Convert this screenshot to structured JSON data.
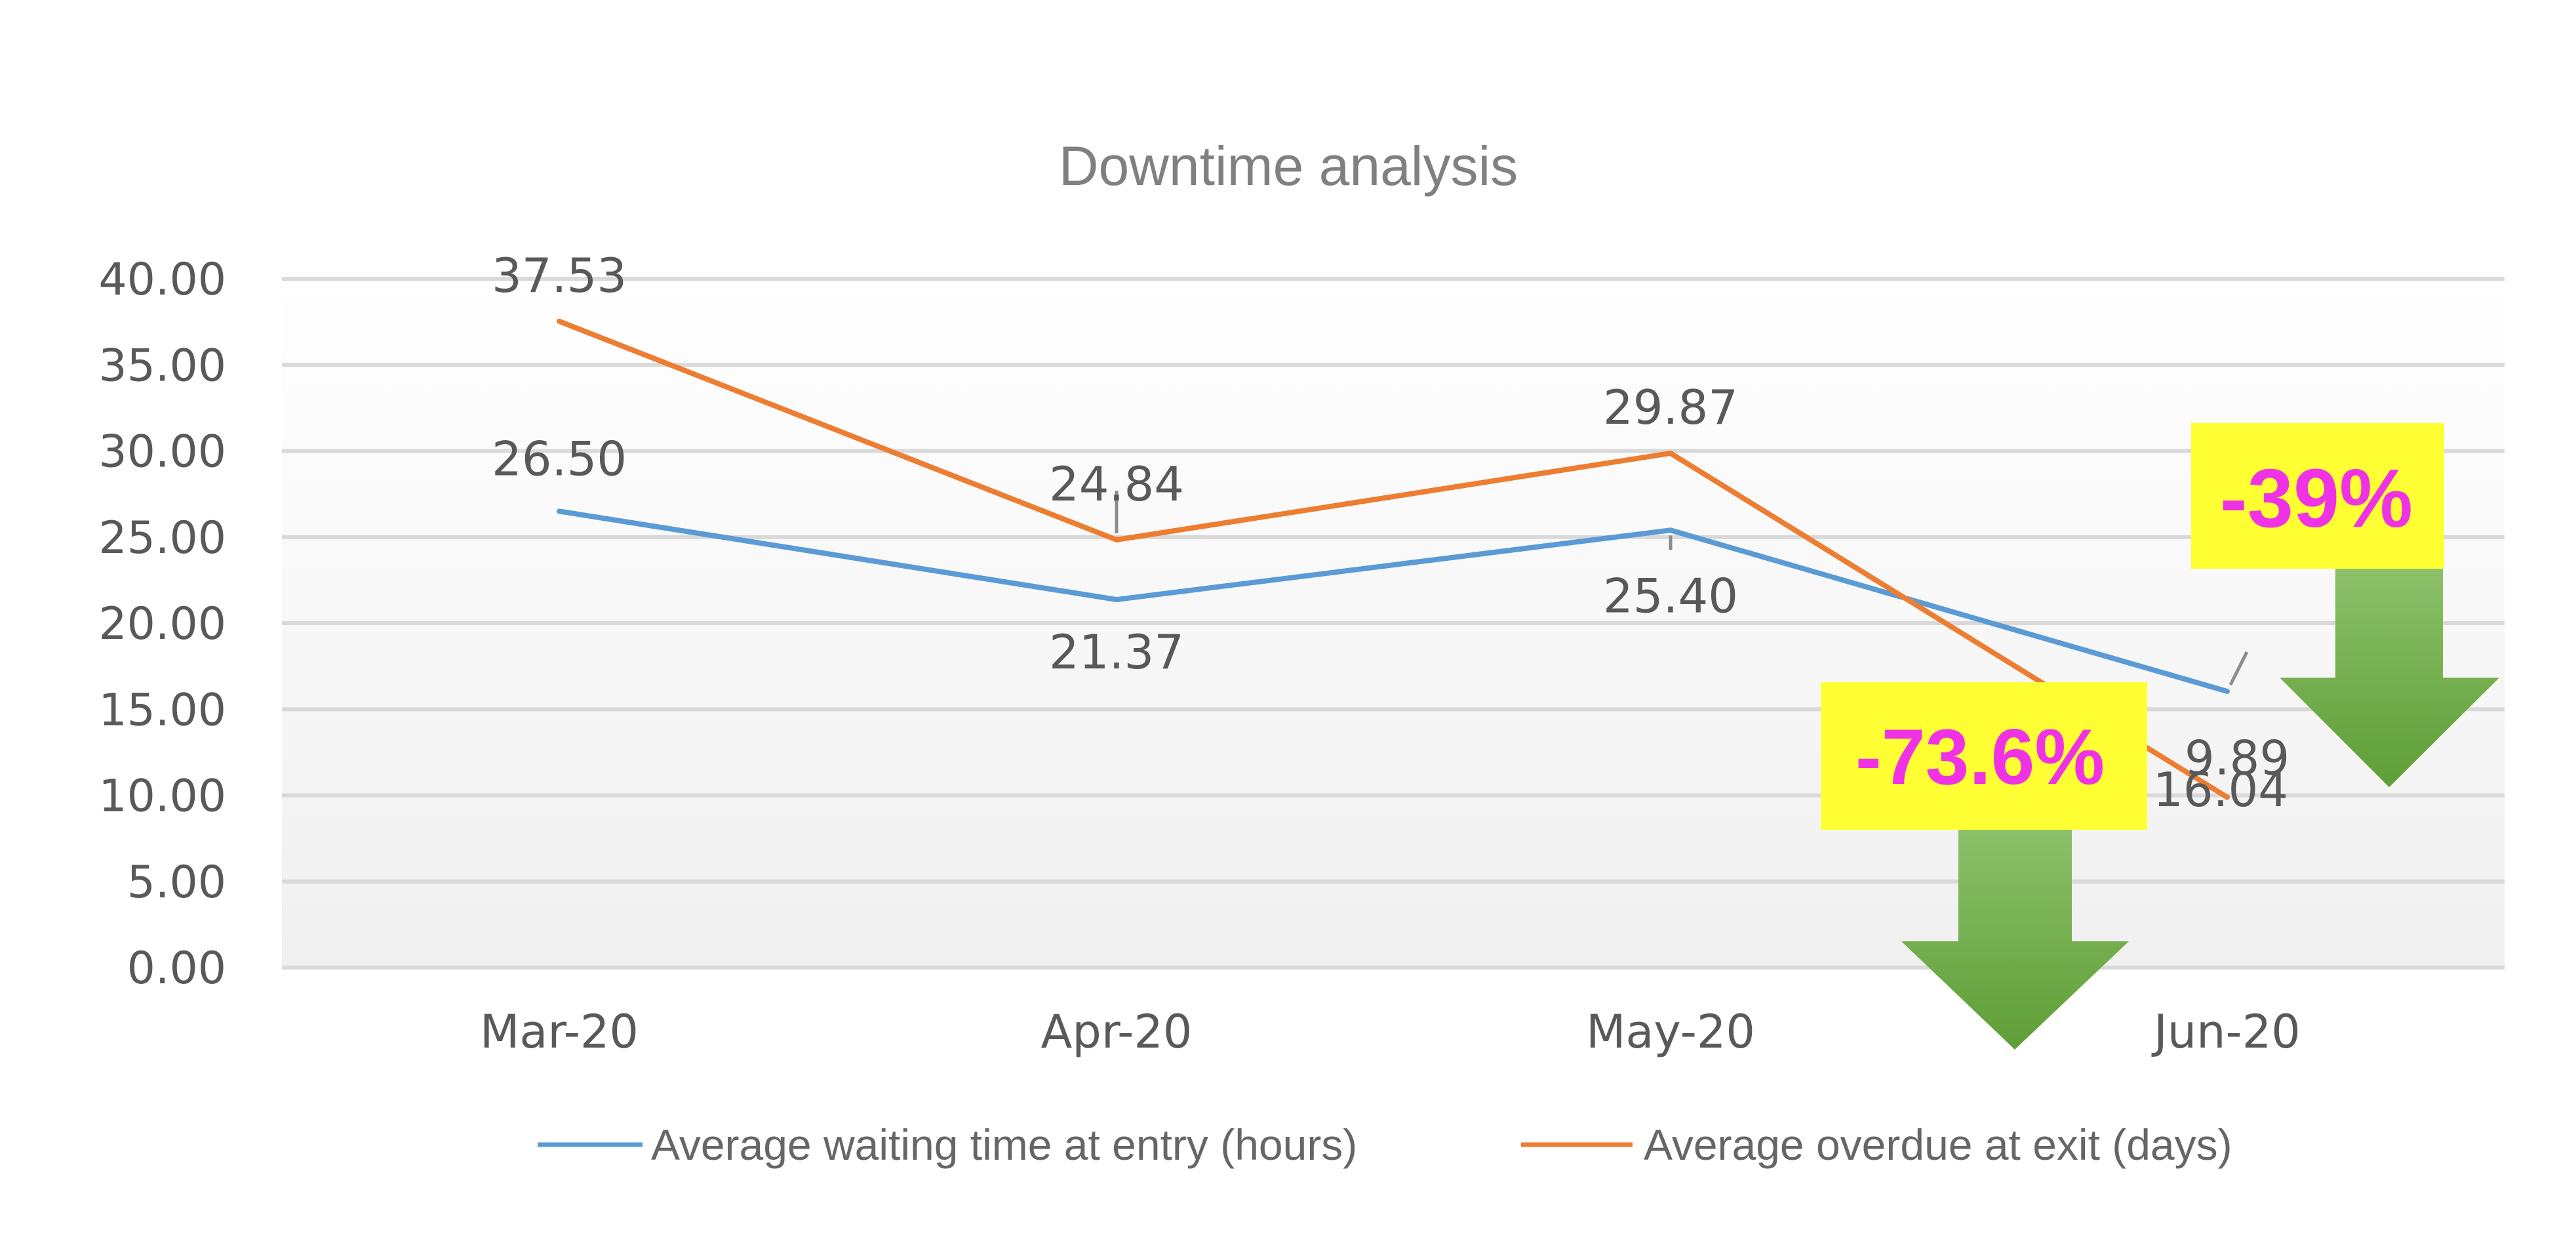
{
  "chart_data": {
    "type": "line",
    "title": "Downtime analysis",
    "xlabel": "",
    "ylabel": "",
    "categories": [
      "Mar-20",
      "Apr-20",
      "May-20",
      "Jun-20"
    ],
    "ylim": [
      0,
      40
    ],
    "ytick_step": 5,
    "ytick_labels": [
      "0.00",
      "5.00",
      "10.00",
      "15.00",
      "20.00",
      "25.00",
      "30.00",
      "35.00",
      "40.00"
    ],
    "grid": true,
    "legend_position": "bottom",
    "series": [
      {
        "name": "Average waiting time at entry (hours)",
        "values": [
          26.5,
          21.37,
          25.4,
          16.04
        ],
        "labels": [
          "26.50",
          "21.37",
          "25.40",
          "16.04"
        ],
        "color": "#5b9bd5"
      },
      {
        "name": "Average overdue at exit (days)",
        "values": [
          37.53,
          24.84,
          29.87,
          9.89
        ],
        "labels": [
          "37.53",
          "24.84",
          "29.87",
          "9.89"
        ],
        "color": "#ed7d31"
      }
    ],
    "annotations": [
      {
        "text": "-73.6%",
        "background": "#ffff33",
        "text_color": "#f032e6",
        "arrow_color": "#70ad47"
      },
      {
        "text": "-39%",
        "background": "#ffff33",
        "text_color": "#f032e6",
        "arrow_color": "#70ad47"
      }
    ]
  }
}
